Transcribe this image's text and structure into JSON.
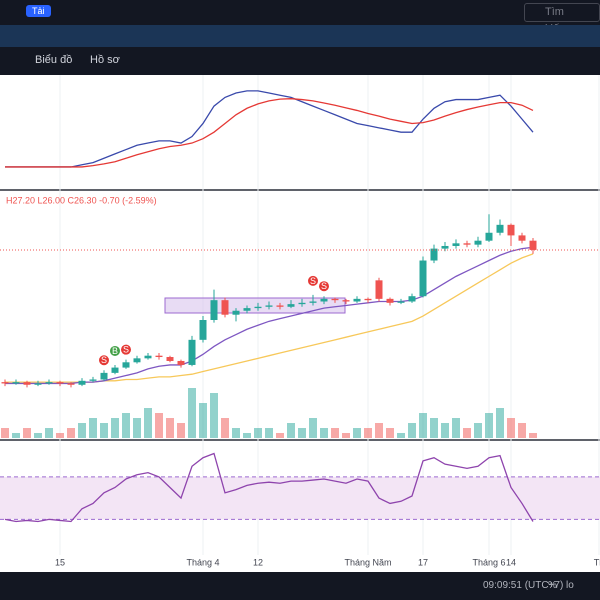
{
  "toolbar": {
    "load": "Tải",
    "search": "Tìm kiếm...",
    "tabs": [
      "Biểu đồ",
      "Hồ sơ"
    ]
  },
  "legend": "H27.20 L26.00 C26.30 -0.70 (-2.59%)",
  "status": {
    "time": "09:09:51 (UTC+7)",
    "percent": "%",
    "log": "lo"
  },
  "chart_data": {
    "type": "candlestick",
    "candles": [
      [
        16.3,
        16.5,
        16.0,
        16.2
      ],
      [
        16.2,
        16.5,
        16.1,
        16.3
      ],
      [
        16.3,
        16.4,
        15.9,
        16.1
      ],
      [
        16.1,
        16.4,
        16.0,
        16.2
      ],
      [
        16.2,
        16.5,
        16.1,
        16.3
      ],
      [
        16.3,
        16.4,
        16.0,
        16.2
      ],
      [
        16.2,
        16.3,
        15.9,
        16.1
      ],
      [
        16.1,
        16.6,
        16.0,
        16.4
      ],
      [
        16.4,
        16.7,
        16.3,
        16.5
      ],
      [
        16.5,
        17.2,
        16.4,
        17.0
      ],
      [
        17.0,
        17.6,
        16.9,
        17.4
      ],
      [
        17.4,
        18.0,
        17.3,
        17.8
      ],
      [
        17.8,
        18.3,
        17.7,
        18.1
      ],
      [
        18.1,
        18.5,
        18.0,
        18.3
      ],
      [
        18.3,
        18.5,
        18.0,
        18.2
      ],
      [
        18.2,
        18.3,
        17.8,
        17.9
      ],
      [
        17.9,
        18.0,
        17.4,
        17.6
      ],
      [
        17.6,
        19.8,
        17.5,
        19.5
      ],
      [
        19.5,
        21.3,
        19.3,
        21.0
      ],
      [
        21.0,
        23.3,
        20.8,
        22.5
      ],
      [
        22.5,
        22.7,
        21.2,
        21.4
      ],
      [
        21.4,
        21.9,
        20.9,
        21.7
      ],
      [
        21.7,
        22.1,
        21.5,
        21.9
      ],
      [
        21.9,
        22.3,
        21.7,
        22.0
      ],
      [
        22.0,
        22.4,
        21.8,
        22.1
      ],
      [
        22.1,
        22.3,
        21.8,
        22.0
      ],
      [
        22.0,
        22.5,
        21.9,
        22.2
      ],
      [
        22.2,
        22.6,
        22.0,
        22.3
      ],
      [
        22.3,
        22.9,
        22.1,
        22.4
      ],
      [
        22.4,
        22.8,
        22.2,
        22.6
      ],
      [
        22.6,
        22.7,
        22.3,
        22.5
      ],
      [
        22.5,
        22.6,
        22.2,
        22.4
      ],
      [
        22.4,
        22.8,
        22.3,
        22.6
      ],
      [
        22.6,
        22.7,
        22.3,
        22.5
      ],
      [
        24.0,
        24.2,
        22.4,
        22.6
      ],
      [
        22.6,
        22.7,
        22.1,
        22.3
      ],
      [
        22.3,
        22.6,
        22.2,
        22.4
      ],
      [
        22.4,
        23.0,
        22.3,
        22.8
      ],
      [
        22.8,
        25.8,
        22.7,
        25.5
      ],
      [
        25.5,
        26.7,
        25.3,
        26.4
      ],
      [
        26.4,
        26.9,
        26.2,
        26.6
      ],
      [
        26.6,
        27.1,
        26.4,
        26.8
      ],
      [
        26.8,
        27.0,
        26.5,
        26.7
      ],
      [
        26.7,
        27.3,
        26.5,
        27.0
      ],
      [
        27.0,
        29.0,
        26.9,
        27.6
      ],
      [
        27.6,
        28.6,
        27.4,
        28.2
      ],
      [
        28.2,
        28.3,
        26.6,
        27.4
      ],
      [
        27.4,
        27.6,
        26.8,
        27.0
      ],
      [
        27.0,
        27.2,
        26.0,
        26.3
      ]
    ],
    "ma_short": [
      16.2,
      16.2,
      16.2,
      16.2,
      16.2,
      16.2,
      16.2,
      16.3,
      16.3,
      16.4,
      16.6,
      16.8,
      17.0,
      17.3,
      17.5,
      17.6,
      17.6,
      17.9,
      18.4,
      19.0,
      19.5,
      19.9,
      20.3,
      20.6,
      20.9,
      21.1,
      21.3,
      21.5,
      21.7,
      21.9,
      22.0,
      22.1,
      22.2,
      22.3,
      22.4,
      22.4,
      22.4,
      22.5,
      22.8,
      23.3,
      23.8,
      24.3,
      24.7,
      25.1,
      25.5,
      25.9,
      26.2,
      26.4,
      26.5
    ],
    "ma_long": [
      16.3,
      16.3,
      16.3,
      16.3,
      16.3,
      16.3,
      16.3,
      16.3,
      16.3,
      16.4,
      16.4,
      16.5,
      16.5,
      16.6,
      16.7,
      16.7,
      16.8,
      16.9,
      17.1,
      17.3,
      17.5,
      17.7,
      17.9,
      18.1,
      18.3,
      18.5,
      18.7,
      18.9,
      19.1,
      19.3,
      19.5,
      19.7,
      19.9,
      20.1,
      20.3,
      20.5,
      20.7,
      20.9,
      21.3,
      21.8,
      22.3,
      22.8,
      23.3,
      23.8,
      24.3,
      24.8,
      25.3,
      25.7,
      26.0
    ],
    "ylim": [
      12.3,
      29.7
    ],
    "volume": [
      2,
      1,
      2,
      1,
      2,
      1,
      2,
      3,
      4,
      3,
      4,
      5,
      4,
      6,
      5,
      4,
      3,
      10,
      7,
      9,
      4,
      2,
      1,
      2,
      2,
      1,
      3,
      2,
      4,
      2,
      2,
      1,
      2,
      2,
      3,
      2,
      1,
      3,
      5,
      4,
      3,
      4,
      2,
      3,
      5,
      6,
      4,
      3,
      1
    ],
    "volume_ylim": [
      0,
      47
    ],
    "macd": [
      0,
      0,
      0,
      0,
      0,
      0,
      0,
      0.05,
      0.1,
      0.2,
      0.3,
      0.4,
      0.5,
      0.55,
      0.6,
      0.6,
      0.55,
      0.7,
      1.0,
      1.4,
      1.6,
      1.7,
      1.75,
      1.75,
      1.7,
      1.65,
      1.6,
      1.5,
      1.4,
      1.3,
      1.2,
      1.1,
      1.0,
      0.95,
      0.9,
      0.85,
      0.8,
      0.8,
      1.1,
      1.35,
      1.5,
      1.55,
      1.55,
      1.55,
      1.6,
      1.65,
      1.4,
      1.1,
      0.8
    ],
    "signal": [
      0,
      0,
      0,
      0,
      0,
      0,
      0,
      0,
      0.03,
      0.07,
      0.12,
      0.2,
      0.28,
      0.35,
      0.42,
      0.47,
      0.5,
      0.55,
      0.65,
      0.8,
      1.0,
      1.2,
      1.35,
      1.45,
      1.52,
      1.56,
      1.57,
      1.55,
      1.52,
      1.47,
      1.42,
      1.36,
      1.3,
      1.23,
      1.17,
      1.1,
      1.05,
      1.0,
      1.02,
      1.08,
      1.17,
      1.25,
      1.32,
      1.38,
      1.43,
      1.48,
      1.48,
      1.42,
      1.3
    ],
    "macd_ylim": [
      -0.3,
      2.0
    ],
    "rsi": [
      30,
      28,
      29,
      28,
      30,
      29,
      28,
      40,
      45,
      55,
      60,
      68,
      72,
      74,
      70,
      60,
      50,
      80,
      88,
      92,
      55,
      58,
      62,
      64,
      65,
      64,
      66,
      66,
      67,
      68,
      66,
      64,
      68,
      66,
      50,
      45,
      47,
      52,
      85,
      88,
      82,
      80,
      78,
      80,
      88,
      90,
      60,
      45,
      28
    ],
    "rsi_ylim": [
      20,
      100
    ],
    "rsi_bands": [
      30,
      70
    ],
    "xticks": [
      {
        "value": 5,
        "label": "15"
      },
      {
        "value": 18,
        "label": "Tháng 4"
      },
      {
        "value": 23,
        "label": "12"
      },
      {
        "value": 33,
        "label": "Tháng Năm"
      },
      {
        "value": 38,
        "label": "17"
      },
      {
        "value": 44,
        "label": "Tháng 6"
      },
      {
        "value": 46,
        "label": "14"
      },
      {
        "value": 54,
        "label": "Th"
      }
    ],
    "signals": [
      {
        "label": "S",
        "at": 9
      },
      {
        "label": "B",
        "at": 10
      },
      {
        "label": "S",
        "at": 11
      },
      {
        "label": "S",
        "at": 28
      },
      {
        "label": "S",
        "at": 29
      }
    ],
    "colors": {
      "up": "#26a69a",
      "down": "#ef5350",
      "ma_short": "#7e57c2",
      "ma_long": "#f7c85a",
      "macd": "#3949ab",
      "signal": "#e53935",
      "rsi": "#8e44ad"
    }
  }
}
